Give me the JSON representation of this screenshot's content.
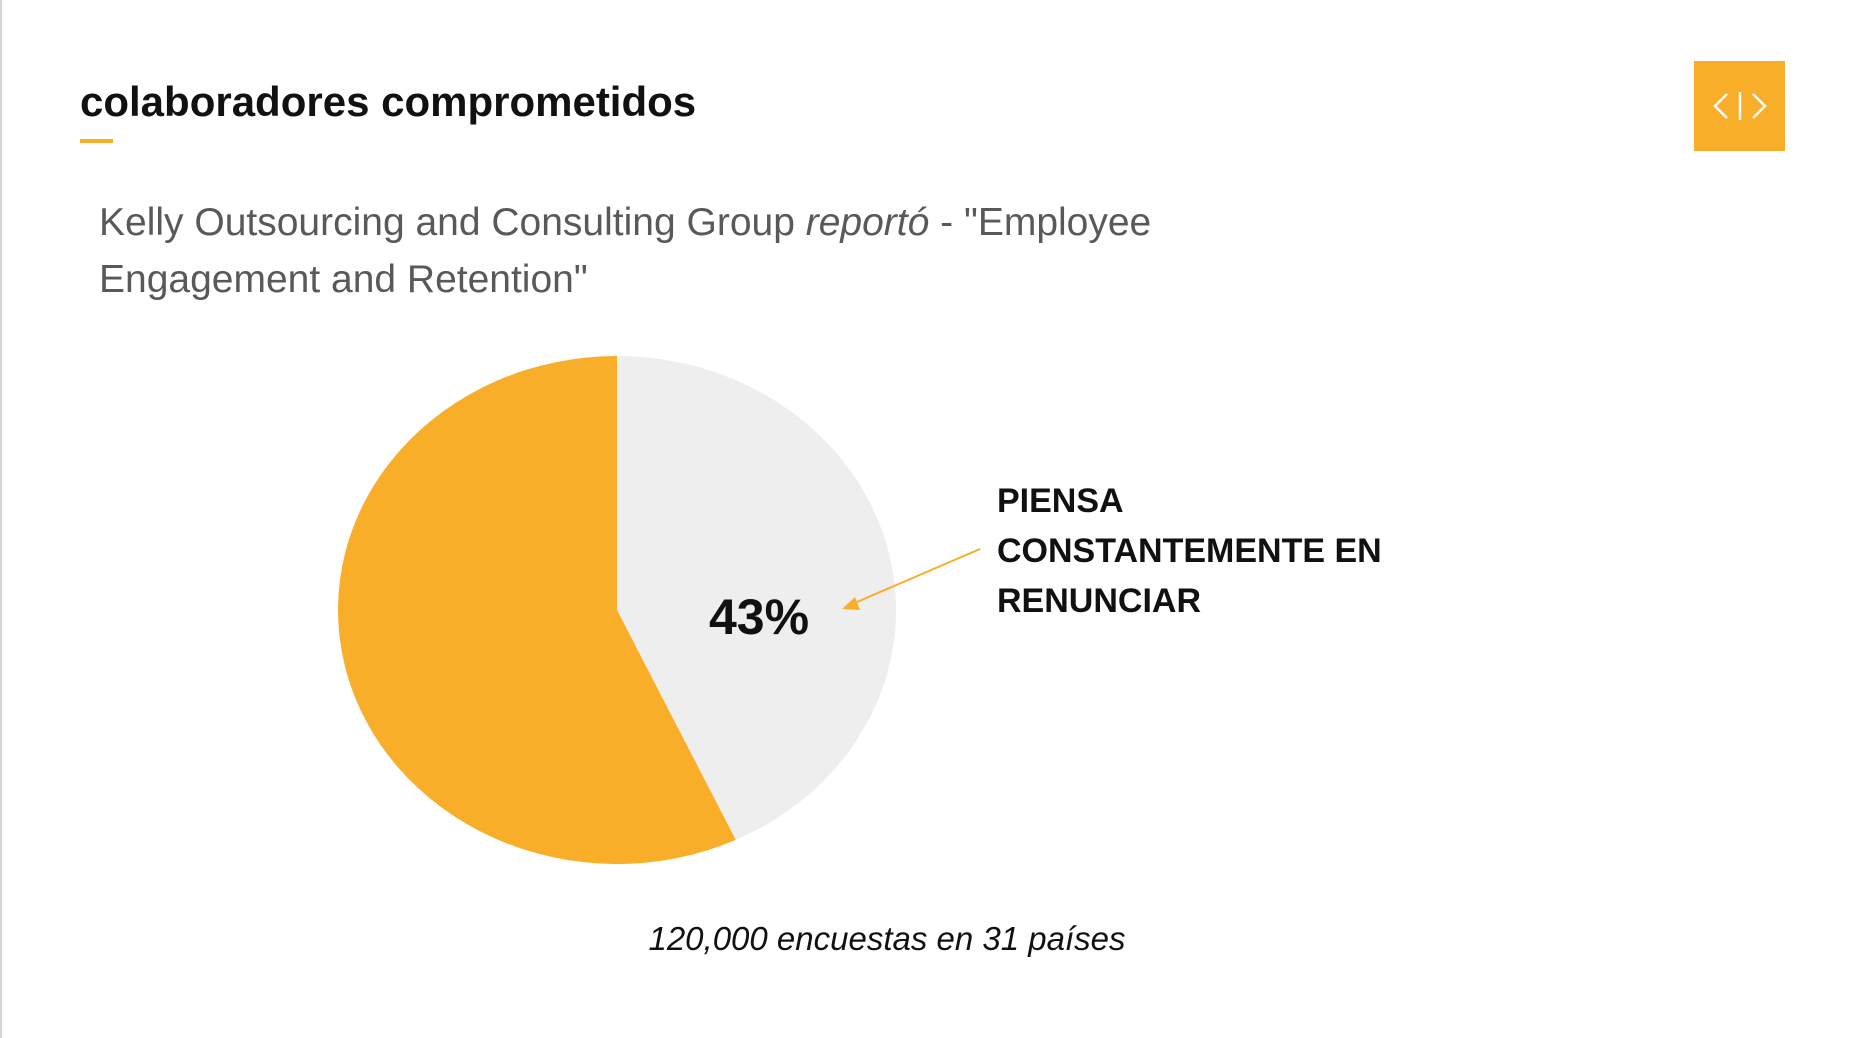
{
  "slide": {
    "title": "colaboradores comprometidos",
    "subtitle_part1": "Kelly Outsourcing and Consulting Group ",
    "subtitle_em": "reportó",
    "subtitle_part2": " - \"Employee Engagement and Retention\"",
    "logo_icon": "code-brackets-icon",
    "accent_color": "#f9ae2a"
  },
  "callout": {
    "line1": "PIENSA",
    "line2": "CONSTANTEMENTE EN",
    "line3": "RENUNCIAR"
  },
  "footnote": "120,000 encuestas en 31 países",
  "chart_data": {
    "type": "pie",
    "slices": [
      {
        "value": 43,
        "color": "#eeeeee",
        "label": "43%"
      },
      {
        "value": 57,
        "color": "#f9ae2a",
        "label": ""
      }
    ],
    "start": "12 o'clock",
    "direction": "clockwise"
  }
}
